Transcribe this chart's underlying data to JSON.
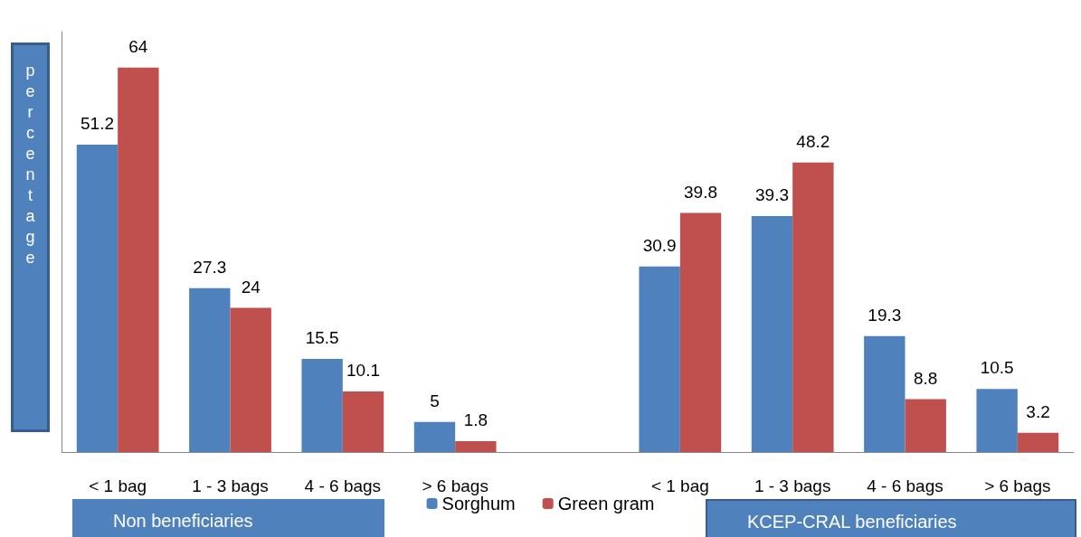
{
  "chart_data": {
    "type": "bar",
    "ylabel": "percentage",
    "categories": [
      "< 1 bag",
      "1 - 3 bags",
      "4 - 6 bags",
      "> 6 bags",
      null,
      "< 1 bag",
      "1 - 3 bags",
      "4 - 6 bags",
      "> 6 bags"
    ],
    "series": [
      {
        "name": "Sorghum",
        "color": "#4f81bd",
        "values": [
          51.2,
          27.3,
          15.5,
          5,
          null,
          30.9,
          39.3,
          19.3,
          10.5
        ]
      },
      {
        "name": "Green gram",
        "color": "#c0504d",
        "values": [
          64,
          24,
          10.1,
          1.8,
          null,
          39.8,
          48.2,
          8.8,
          3.2
        ]
      }
    ],
    "ylim": [
      0,
      70
    ],
    "tick_labels": "x",
    "data_labels": true,
    "legend": "bottom",
    "grid": false,
    "annotations": [
      "Non beneficiaries",
      "KCEP-CRAL beneficiaries"
    ]
  }
}
